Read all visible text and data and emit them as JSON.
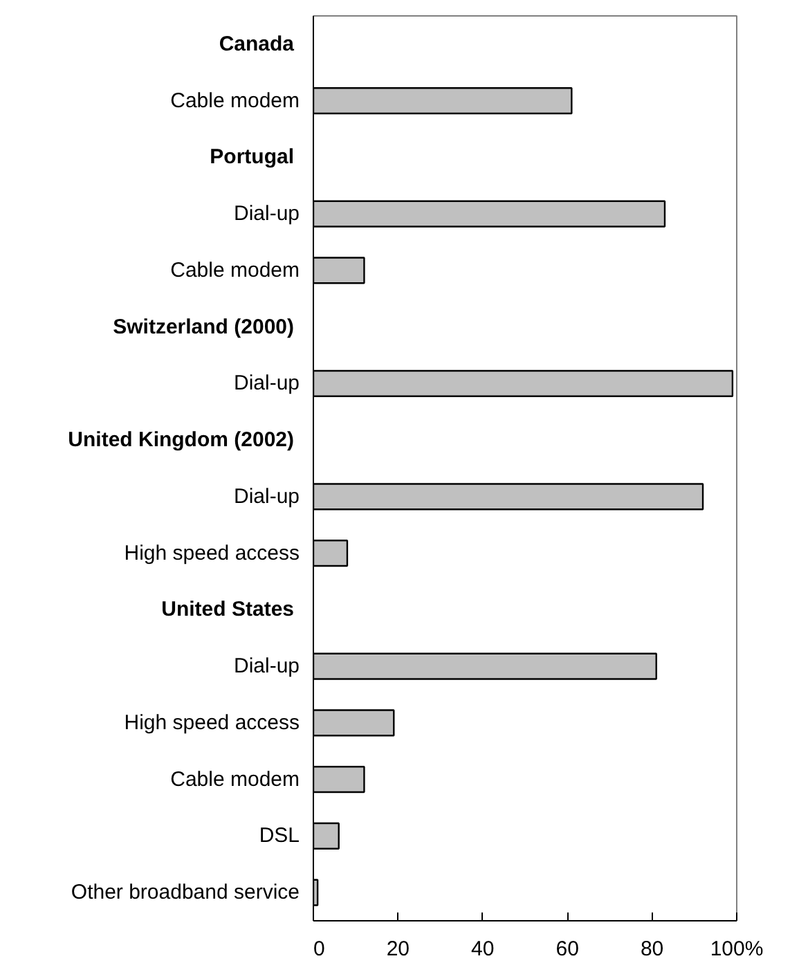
{
  "chart_data": {
    "type": "bar",
    "orientation": "horizontal",
    "categories": [
      "Canada",
      "Cable modem",
      "Portugal",
      "Dial-up",
      "Cable modem",
      "Switzerland (2000)",
      "Dial-up",
      "United Kingdom (2002)",
      "Dial-up",
      "High speed access",
      "United States",
      "Dial-up",
      "High speed access",
      "Cable modem",
      "DSL",
      "Other broadband service"
    ],
    "values": [
      null,
      61,
      null,
      83,
      12,
      null,
      99,
      null,
      92,
      8,
      null,
      81,
      19,
      12,
      6,
      1
    ],
    "color": "#c0c0c0",
    "xlim": [
      0,
      100
    ],
    "xticks": [
      0,
      20,
      40,
      60,
      80,
      {
        "value": 100,
        "label": "100%"
      }
    ],
    "tick_labels": "x",
    "grid": false
  }
}
